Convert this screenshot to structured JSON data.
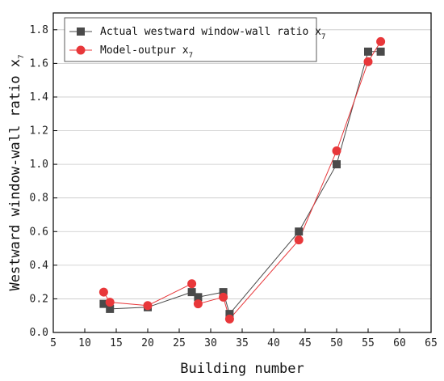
{
  "chart_data": {
    "type": "line",
    "xlabel": "Building number",
    "ylabel": {
      "text": "Westward window-wall ratio x",
      "sub": "7"
    },
    "xlim": [
      5,
      65
    ],
    "ylim": [
      0,
      1.9
    ],
    "xticks": [
      5,
      10,
      15,
      20,
      25,
      30,
      35,
      40,
      45,
      50,
      55,
      60,
      65
    ],
    "yticks": [
      0.0,
      0.2,
      0.4,
      0.6,
      0.8,
      1.0,
      1.2,
      1.4,
      1.6,
      1.8
    ],
    "grid": "horizontal",
    "legend_position": "top-left",
    "series": [
      {
        "name": "Actual westward window-wall ratio x",
        "name_sub": "7",
        "marker": "square",
        "color": "#4a4a4a",
        "x": [
          13,
          14,
          20,
          27,
          28,
          32,
          33,
          44,
          50,
          55,
          57
        ],
        "y": [
          0.17,
          0.14,
          0.15,
          0.24,
          0.21,
          0.24,
          0.11,
          0.6,
          1.0,
          1.67,
          1.67
        ]
      },
      {
        "name": "Model-outpur x",
        "name_sub": "7",
        "marker": "circle",
        "color": "#e8373a",
        "x": [
          13,
          14,
          20,
          27,
          28,
          32,
          33,
          44,
          50,
          55,
          57
        ],
        "y": [
          0.24,
          0.18,
          0.16,
          0.29,
          0.17,
          0.21,
          0.08,
          0.55,
          1.08,
          1.61,
          1.73
        ]
      }
    ]
  }
}
